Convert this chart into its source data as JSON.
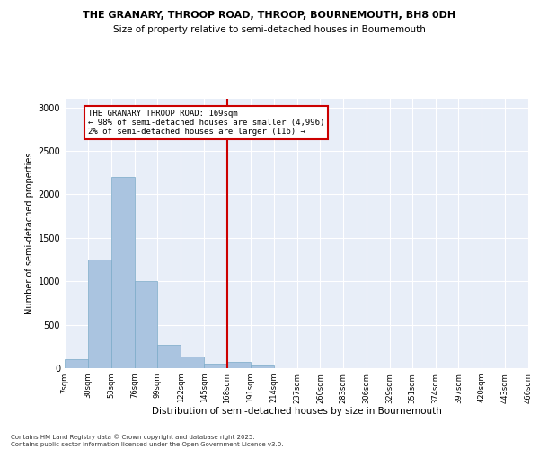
{
  "title1": "THE GRANARY, THROOP ROAD, THROOP, BOURNEMOUTH, BH8 0DH",
  "title2": "Size of property relative to semi-detached houses in Bournemouth",
  "xlabel": "Distribution of semi-detached houses by size in Bournemouth",
  "ylabel": "Number of semi-detached properties",
  "bin_edges": [
    7,
    30,
    53,
    76,
    99,
    122,
    145,
    168,
    191,
    214,
    237,
    260,
    283,
    306,
    329,
    351,
    374,
    397,
    420,
    443,
    466
  ],
  "bin_labels": [
    "7sqm",
    "30sqm",
    "53sqm",
    "76sqm",
    "99sqm",
    "122sqm",
    "145sqm",
    "168sqm",
    "191sqm",
    "214sqm",
    "237sqm",
    "260sqm",
    "283sqm",
    "306sqm",
    "329sqm",
    "351sqm",
    "374sqm",
    "397sqm",
    "420sqm",
    "443sqm",
    "466sqm"
  ],
  "bar_heights": [
    100,
    1250,
    2200,
    1000,
    270,
    130,
    50,
    70,
    30,
    5,
    3,
    0,
    0,
    0,
    0,
    0,
    0,
    0,
    0,
    0
  ],
  "bar_color": "#aac4e0",
  "bar_edge_color": "#7aaac8",
  "vline_x": 168,
  "vline_color": "#cc0000",
  "annotation_text": "THE GRANARY THROOP ROAD: 169sqm\n← 98% of semi-detached houses are smaller (4,996)\n2% of semi-detached houses are larger (116) →",
  "annotation_box_color": "#ffffff",
  "annotation_box_edge": "#cc0000",
  "ylim": [
    0,
    3100
  ],
  "yticks": [
    0,
    500,
    1000,
    1500,
    2000,
    2500,
    3000
  ],
  "bg_color": "#e8eef8",
  "footer1": "Contains HM Land Registry data © Crown copyright and database right 2025.",
  "footer2": "Contains public sector information licensed under the Open Government Licence v3.0."
}
